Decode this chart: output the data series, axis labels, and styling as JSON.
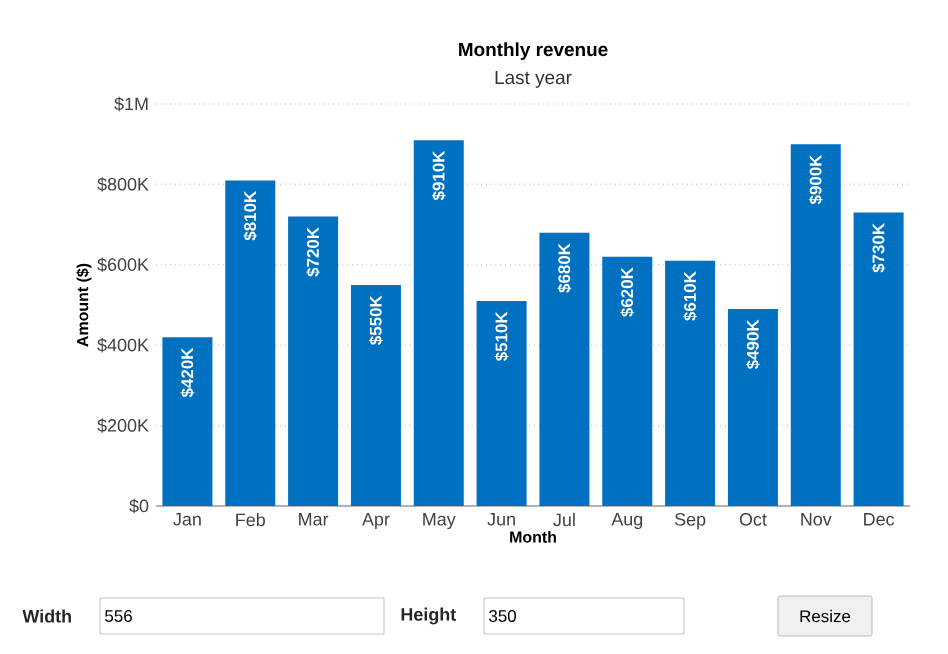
{
  "chart_data": {
    "type": "bar",
    "title": "Monthly revenue",
    "subtitle": "Last year",
    "xlabel": "Month",
    "ylabel": "Amount ($)",
    "categories": [
      "Jan",
      "Feb",
      "Mar",
      "Apr",
      "May",
      "Jun",
      "Jul",
      "Aug",
      "Sep",
      "Oct",
      "Nov",
      "Dec"
    ],
    "values": [
      420000,
      810000,
      720000,
      550000,
      910000,
      510000,
      680000,
      620000,
      610000,
      490000,
      900000,
      730000
    ],
    "value_labels": [
      "$420K",
      "$810K",
      "$720K",
      "$550K",
      "$910K",
      "$510K",
      "$680K",
      "$620K",
      "$610K",
      "$490K",
      "$900K",
      "$730K"
    ],
    "color": "#0070c0",
    "ylim": [
      0,
      1000000
    ],
    "yticks": [
      {
        "value": 0,
        "label": "$0"
      },
      {
        "value": 200000,
        "label": "$200K"
      },
      {
        "value": 400000,
        "label": "$400K"
      },
      {
        "value": 600000,
        "label": "$600K"
      },
      {
        "value": 800000,
        "label": "$800K"
      },
      {
        "value": 1000000,
        "label": "$1M"
      }
    ],
    "grid": "y",
    "annotations": [
      "Width",
      "556",
      "Height",
      "350",
      "Resize"
    ]
  }
}
